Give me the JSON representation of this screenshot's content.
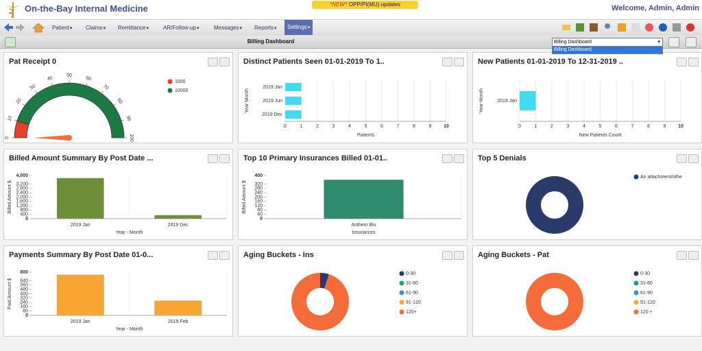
{
  "header": {
    "title": "On-the-Bay Internal Medicine",
    "badge_new": "*NEW*",
    "badge_text": "OPP/PI(MU) updates",
    "welcome": "Welcome, Admin, Admin"
  },
  "nav": [
    "Patient",
    "Claims",
    "Remittance",
    "AR/Follow-up",
    "Messages",
    "Reports",
    "Settings"
  ],
  "toolbar": {
    "title": "Billing Dashboard",
    "select": "Billing Dashboard",
    "options": [
      "Billing Dashboard"
    ]
  },
  "chart_data": [
    {
      "type": "gauge",
      "title": "Pat Receipt 0",
      "value": 0,
      "lim": [
        0,
        100
      ],
      "ticks": [
        0,
        10,
        20,
        30,
        40,
        50,
        60,
        70,
        80,
        90,
        100
      ],
      "needle_color": "#f26b3a",
      "bands": [
        {
          "name": "1000",
          "color": "#e8402a",
          "from": 0,
          "to": 10
        },
        {
          "name": "10000",
          "color": "#1e7a45",
          "from": 10,
          "to": 100
        }
      ]
    },
    {
      "type": "hbar",
      "title": "Distinct Patients Seen 01-01-2019 To 1..",
      "categories": [
        "2019 Jan",
        "2019 Jun",
        "2019 Dec"
      ],
      "values": [
        1,
        1,
        1
      ],
      "color": "#3fdcf0",
      "xlim": [
        0,
        10
      ],
      "xticks": [
        0,
        1,
        2,
        3,
        4,
        5,
        6,
        7,
        8,
        9,
        10
      ],
      "xlabel": "Patients",
      "ylabel": "Year-Month"
    },
    {
      "type": "hbar",
      "title": "New Patients 01-01-2019 To 12-31-2019 ..",
      "categories": [
        "2019 Jan"
      ],
      "values": [
        1
      ],
      "color": "#3fdcf0",
      "xlim": [
        0,
        10
      ],
      "xticks": [
        0,
        1,
        2,
        3,
        4,
        5,
        6,
        7,
        8,
        9,
        10
      ],
      "xlabel": "New Patients Count",
      "ylabel": "Year-Month"
    },
    {
      "type": "bar",
      "title": "Billed Amount Summary By Post Date ...",
      "categories": [
        "2019 Jan",
        "2019 Dec"
      ],
      "values": [
        3750,
        320
      ],
      "color": "#6b8e37",
      "ylim": [
        0,
        4000
      ],
      "yticks": [
        0,
        400,
        800,
        {
          "value": 1200,
          "label": "1,200"
        },
        {
          "value": 1600,
          "label": "1,600"
        },
        {
          "value": 2000,
          "label": "2,000"
        },
        {
          "value": 2400,
          "label": "2,400"
        },
        {
          "value": 2800,
          "label": "2,800"
        },
        {
          "value": 3200,
          "label": "3,200"
        },
        {
          "value": 4000,
          "label": "4,000"
        }
      ],
      "xlabel": "Year - Month",
      "ylabel": "Billed Amount $"
    },
    {
      "type": "bar",
      "title": "Top 10 Primary Insurances Billed 01-01..",
      "categories": [
        "Anthem Blu"
      ],
      "values": [
        360
      ],
      "color": "#2e8b6e",
      "ylim": [
        0,
        400
      ],
      "yticks": [
        0,
        40,
        80,
        120,
        160,
        200,
        240,
        280,
        320,
        400
      ],
      "xlabel": "Insurances",
      "ylabel": "Billed Amount $"
    },
    {
      "type": "donut",
      "title": "Top 5 Denials",
      "categories": [
        "An attachment/othe"
      ],
      "values": [
        100
      ],
      "colors": [
        "#2a3a6b"
      ]
    },
    {
      "type": "bar",
      "title": "Payments Summary By Post Date 01-0...",
      "categories": [
        "2019 Jan",
        "2019 Feb"
      ],
      "values": [
        750,
        270
      ],
      "color": "#f9a533",
      "ylim": [
        0,
        800
      ],
      "yticks": [
        0,
        80,
        160,
        240,
        320,
        400,
        480,
        560,
        640,
        800
      ],
      "xlabel": "Year - Month",
      "ylabel": "Paid Amount $"
    },
    {
      "type": "donut",
      "title": "Aging Buckets - Ins",
      "categories": [
        "0-30",
        "31-60",
        "61-90",
        "91-120",
        "120+"
      ],
      "values": [
        5,
        0,
        0,
        0,
        95
      ],
      "colors": [
        "#2a3a6b",
        "#1f9c8b",
        "#3a8fd1",
        "#f4a93b",
        "#f56b3a"
      ]
    },
    {
      "type": "donut",
      "title": "Aging Buckets - Pat",
      "categories": [
        "0-30",
        "31-60",
        "61-90",
        "91-120",
        "120 +"
      ],
      "values": [
        0,
        0,
        0,
        0,
        100
      ],
      "colors": [
        "#2a3a6b",
        "#1f9c8b",
        "#3a8fd1",
        "#f4a93b",
        "#f56b3a"
      ]
    }
  ]
}
